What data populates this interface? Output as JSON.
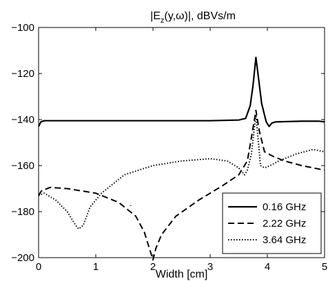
{
  "chart_data": {
    "type": "line",
    "title": "|E_z(y,ω)|, dBVs/m",
    "title_parts": {
      "pre": "|E",
      "sub": "z",
      "post": "(y,ω)|, dBVs/m"
    },
    "xlabel": "Width [cm]",
    "ylabel": "",
    "xlim": [
      0,
      5
    ],
    "ylim": [
      -200,
      -100
    ],
    "xticks": [
      0,
      1,
      2,
      3,
      4,
      5
    ],
    "yticks": [
      -100,
      -120,
      -140,
      -160,
      -180,
      -200
    ],
    "ytick_labels": [
      "−100",
      "−120",
      "−140",
      "−160",
      "−180",
      "−200"
    ],
    "legend_position": "bottom-right",
    "grid": false,
    "series": [
      {
        "name": "0.16 GHz",
        "style": "solid",
        "color": "#000000",
        "points": [
          [
            0.0,
            -143
          ],
          [
            0.04,
            -141
          ],
          [
            0.1,
            -140.5
          ],
          [
            1.0,
            -140.5
          ],
          [
            2.0,
            -140.5
          ],
          [
            3.0,
            -140.5
          ],
          [
            3.5,
            -140.2
          ],
          [
            3.62,
            -139.5
          ],
          [
            3.7,
            -134
          ],
          [
            3.75,
            -125
          ],
          [
            3.8,
            -113
          ],
          [
            3.85,
            -123
          ],
          [
            3.9,
            -133
          ],
          [
            3.98,
            -141
          ],
          [
            4.03,
            -143
          ],
          [
            4.08,
            -141.5
          ],
          [
            4.15,
            -141
          ],
          [
            4.6,
            -140.7
          ],
          [
            4.9,
            -140.7
          ],
          [
            5.0,
            -141
          ]
        ]
      },
      {
        "name": "2.22 GHz",
        "style": "dashed",
        "color": "#000000",
        "points": [
          [
            0.0,
            -173
          ],
          [
            0.05,
            -171
          ],
          [
            0.2,
            -169.5
          ],
          [
            0.5,
            -170
          ],
          [
            1.0,
            -172
          ],
          [
            1.4,
            -176
          ],
          [
            1.7,
            -182
          ],
          [
            1.85,
            -189
          ],
          [
            1.95,
            -197
          ],
          [
            2.0,
            -201
          ],
          [
            2.05,
            -196
          ],
          [
            2.15,
            -190
          ],
          [
            2.4,
            -182
          ],
          [
            2.8,
            -175
          ],
          [
            3.2,
            -169
          ],
          [
            3.5,
            -164
          ],
          [
            3.65,
            -158
          ],
          [
            3.72,
            -148
          ],
          [
            3.8,
            -136
          ],
          [
            3.86,
            -145
          ],
          [
            3.95,
            -154
          ],
          [
            4.1,
            -156
          ],
          [
            4.3,
            -158
          ],
          [
            4.6,
            -160
          ],
          [
            5.0,
            -162
          ]
        ]
      },
      {
        "name": "3.64 GHz",
        "style": "dotted",
        "color": "#000000",
        "points": [
          [
            0.0,
            -173
          ],
          [
            0.1,
            -172
          ],
          [
            0.3,
            -175
          ],
          [
            0.5,
            -180
          ],
          [
            0.65,
            -186
          ],
          [
            0.7,
            -187.5
          ],
          [
            0.78,
            -186
          ],
          [
            0.9,
            -178
          ],
          [
            1.1,
            -172
          ],
          [
            1.5,
            -164
          ],
          [
            2.0,
            -160
          ],
          [
            2.5,
            -158
          ],
          [
            3.0,
            -157
          ],
          [
            3.3,
            -158
          ],
          [
            3.5,
            -161
          ],
          [
            3.6,
            -164
          ],
          [
            3.65,
            -162
          ],
          [
            3.72,
            -155
          ],
          [
            3.8,
            -138
          ],
          [
            3.88,
            -160
          ],
          [
            3.95,
            -161
          ],
          [
            4.05,
            -160
          ],
          [
            4.2,
            -158
          ],
          [
            4.5,
            -155
          ],
          [
            4.8,
            -153
          ],
          [
            5.0,
            -154
          ]
        ]
      }
    ]
  }
}
